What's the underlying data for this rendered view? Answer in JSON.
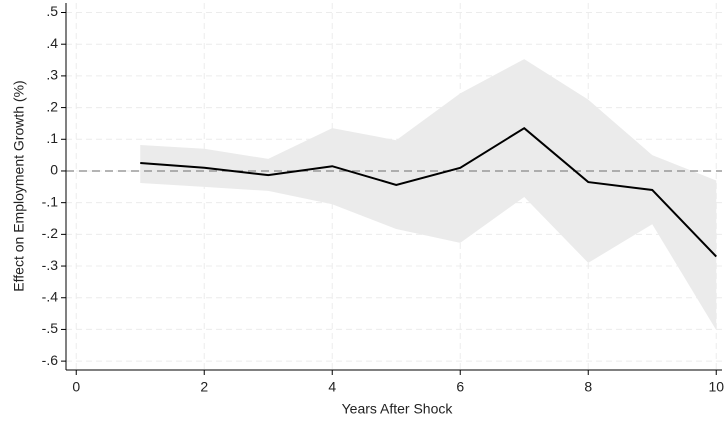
{
  "chart_data": {
    "type": "line",
    "x_label": "Years After Shock",
    "y_label": "Effect on Employment Growth (%)",
    "x": [
      1,
      2,
      3,
      4,
      5,
      6,
      7,
      8,
      9,
      10
    ],
    "values": [
      0.025,
      0.01,
      -0.013,
      0.015,
      -0.044,
      0.01,
      0.135,
      -0.035,
      -0.06,
      -0.27
    ],
    "upper": [
      0.082,
      0.07,
      0.038,
      0.135,
      0.097,
      0.245,
      0.353,
      0.225,
      0.05,
      -0.03
    ],
    "lower": [
      -0.038,
      -0.05,
      -0.063,
      -0.105,
      -0.183,
      -0.227,
      -0.082,
      -0.29,
      -0.168,
      -0.502
    ],
    "color": "#000000",
    "band_color": "#ebebeb",
    "reference_line": 0,
    "xlim": [
      -0.16,
      10.09
    ],
    "ylim": [
      -0.628,
      0.53
    ],
    "xticks": [
      0,
      2,
      4,
      6,
      8,
      10
    ],
    "yticks": [
      {
        "value": 0.5,
        "label": ".5"
      },
      {
        "value": 0.4,
        "label": ".4"
      },
      {
        "value": 0.3,
        "label": ".3"
      },
      {
        "value": 0.2,
        "label": ".2"
      },
      {
        "value": 0.1,
        "label": ".1"
      },
      0,
      {
        "value": -0.1,
        "label": "-.1"
      },
      {
        "value": -0.2,
        "label": "-.2"
      },
      {
        "value": -0.3,
        "label": "-.3"
      },
      {
        "value": -0.4,
        "label": "-.4"
      },
      {
        "value": -0.5,
        "label": "-.5"
      },
      {
        "value": -0.6,
        "label": "-.6"
      }
    ],
    "grid": true
  }
}
